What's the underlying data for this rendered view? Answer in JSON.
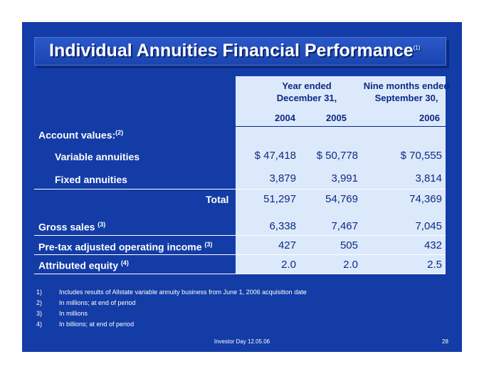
{
  "title": "Individual Annuities Financial Performance",
  "title_footnote": "(1)",
  "header": {
    "year_ended_line1": "Year ended",
    "year_ended_line2": "December 31,",
    "nine_months_line1": "Nine months ended",
    "nine_months_line2": "September 30,",
    "years": [
      "2004",
      "2005",
      "2006"
    ]
  },
  "section_label": "Account values:",
  "section_footnote": "(2)",
  "rows": [
    {
      "label": "Variable annuities",
      "values": [
        "$ 47,418",
        "$ 50,778",
        "$ 70,555"
      ]
    },
    {
      "label": "Fixed annuities",
      "values": [
        "3,879",
        "3,991",
        "3,814"
      ]
    },
    {
      "label": "Total",
      "values": [
        "51,297",
        "54,769",
        "74,369"
      ]
    },
    {
      "label": "Gross sales",
      "footnote": "(3)",
      "values": [
        "6,338",
        "7,467",
        "7,045"
      ]
    },
    {
      "label": "Pre-tax adjusted operating income",
      "footnote": "(3)",
      "values": [
        "427",
        "505",
        "432"
      ]
    },
    {
      "label": "Attributed equity",
      "footnote": "(4)",
      "values": [
        "2.0",
        "2.0",
        "2.5"
      ]
    }
  ],
  "notes": [
    {
      "num": "1)",
      "text": "Includes results of Allstate variable annuity  business from June 1, 2006 acquisition date"
    },
    {
      "num": "2)",
      "text": "In millions; at end of period"
    },
    {
      "num": "3)",
      "text": "In millions"
    },
    {
      "num": "4)",
      "text": "In billions; at end of period"
    }
  ],
  "footer": "Investor Day 12.05.06",
  "page_number": "28",
  "colors": {
    "background": "#133ca6",
    "table_shade": "#dce9fb",
    "value_text": "#0d2a82"
  }
}
